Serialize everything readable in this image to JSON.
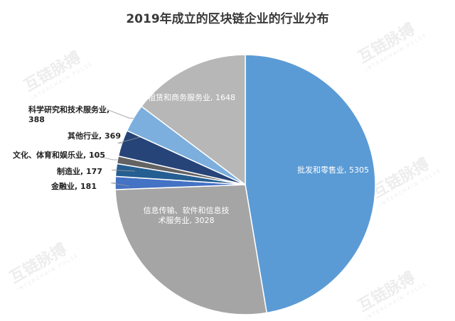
{
  "chart_data": {
    "type": "pie",
    "title": "2019年成立的区块链企业的行业分布",
    "slices": [
      {
        "label": "批发和零售业",
        "value": 5305,
        "color": "#5b9bd5",
        "text": "批发和零售业, 5305"
      },
      {
        "label": "信息传输、软件和信息技术服务业",
        "value": 3028,
        "color": "#a5a5a5",
        "text": "信息传输、软件和信息技\n术服务业, 3028"
      },
      {
        "label": "金融业",
        "value": 181,
        "color": "#4472c4",
        "text": "金融业, 181"
      },
      {
        "label": "制造业",
        "value": 177,
        "color": "#255e91",
        "text": "制造业, 177"
      },
      {
        "label": "文化、体育和娱乐业",
        "value": 105,
        "color": "#636363",
        "text": "文化、体育和娱乐业, 105"
      },
      {
        "label": "其他行业",
        "value": 369,
        "color": "#264478",
        "text": "其他行业, 369"
      },
      {
        "label": "科学研究和技术服务业",
        "value": 388,
        "color": "#7cafdd",
        "text": "科学研究和技术服务业,\n388"
      },
      {
        "label": "租赁和商务服务业",
        "value": 1648,
        "color": "#b7b7b7",
        "text": "租赁和商务服务业, 1648"
      }
    ]
  },
  "watermark": {
    "text": "互链脉搏",
    "sub": "INTERCHAIN PULSE"
  }
}
